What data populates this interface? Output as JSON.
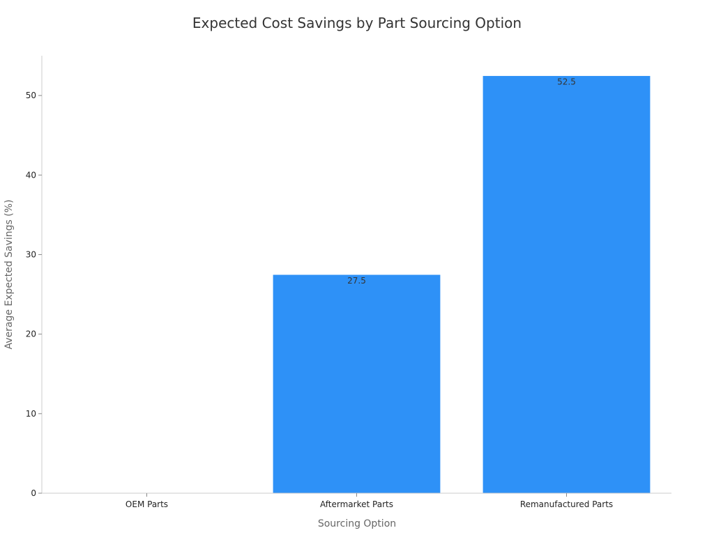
{
  "chart_data": {
    "type": "bar",
    "title": "Expected Cost Savings by Part Sourcing Option",
    "xlabel": "Sourcing Option",
    "ylabel": "Average Expected Savings (%)",
    "categories": [
      "OEM Parts",
      "Aftermarket Parts",
      "Remanufactured Parts"
    ],
    "values": [
      0,
      27.5,
      52.5
    ],
    "data_labels": [
      "",
      "27.5",
      "52.5"
    ],
    "ylim": [
      0,
      55
    ],
    "yticks": [
      0,
      10,
      20,
      30,
      40,
      50
    ],
    "bar_color": "#2e91f7",
    "grid": false
  }
}
